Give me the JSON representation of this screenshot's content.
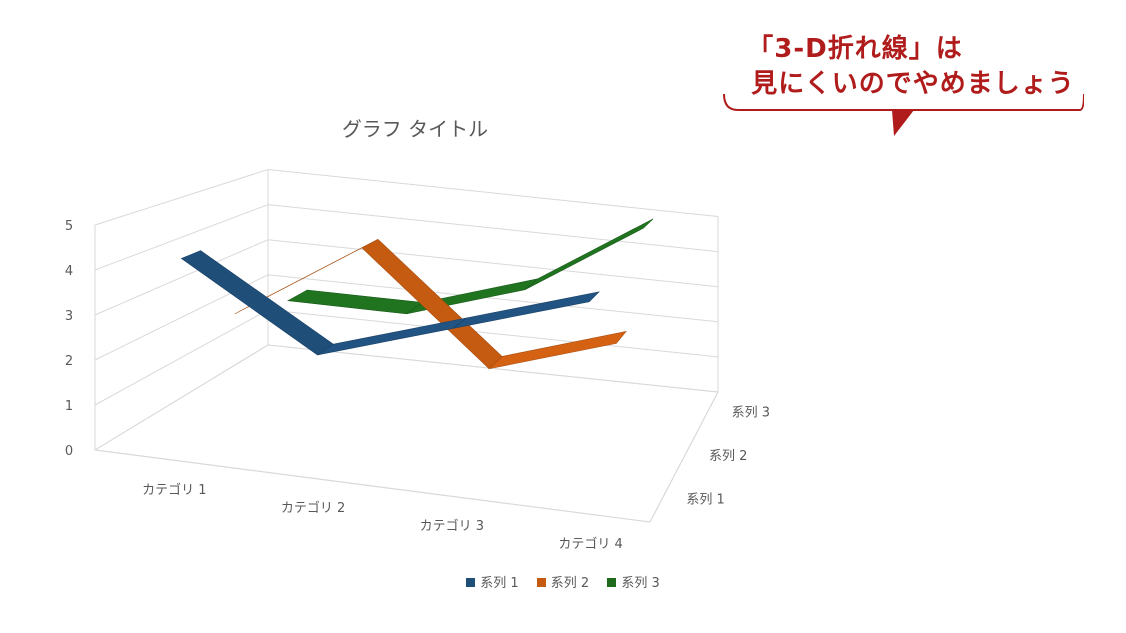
{
  "callout": {
    "line1": "「3-D折れ線」は",
    "line2": "見にくいのでやめましょう",
    "color": "#b01b1b"
  },
  "chart_data": {
    "type": "line",
    "variant": "3d-line",
    "title": "グラフ タイトル",
    "categories": [
      "カテゴリ 1",
      "カテゴリ 2",
      "カテゴリ 3",
      "カテゴリ 4"
    ],
    "depth_labels": [
      "系列 1",
      "系列 2",
      "系列 3"
    ],
    "series": [
      {
        "name": "系列 1",
        "values": [
          4.3,
          2.5,
          3.5,
          4.5
        ],
        "color": "#1f4e79"
      },
      {
        "name": "系列 2",
        "values": [
          2.4,
          4.4,
          1.8,
          2.8
        ],
        "color": "#c55a11"
      },
      {
        "name": "系列 3",
        "values": [
          2.0,
          2.0,
          3.0,
          5.0
        ],
        "color": "#1e6b1e"
      }
    ],
    "ylim": [
      0,
      5
    ],
    "yticks": [
      "0",
      "1",
      "2",
      "3",
      "4",
      "5"
    ],
    "grid": true,
    "legend_position": "bottom"
  }
}
